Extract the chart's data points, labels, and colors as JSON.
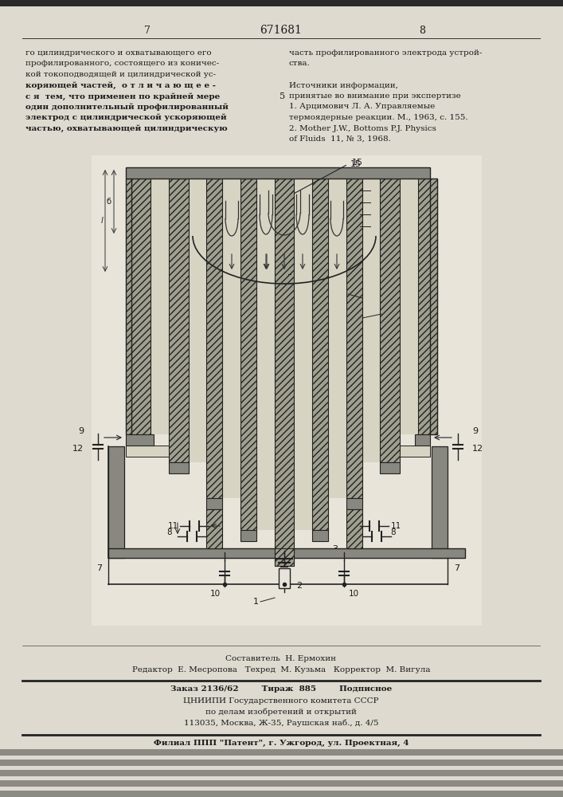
{
  "bg_color": "#c8c4b4",
  "page_color": "#dedad0",
  "title_number": "671681",
  "page_left": "7",
  "page_right": "8",
  "text_left_col": [
    "го цилиндрического и охватывающего его",
    "профилированного, состоящего из коничес-",
    "кой токоподводящей и цилиндрической ус-",
    "коряющей частей,  о т л и ч а ю щ е е -",
    "с я  тем, что применен по крайней мере",
    "один дополнительный профилированный",
    "электрод с цилиндрической ускоряющей",
    "частью, охватывающей цилиндрическую"
  ],
  "text_right_col": [
    "часть профилированного электрода устрой-",
    "ства.",
    "",
    "Источники информации,",
    "принятые во внимание при экспертизе",
    "1. Арцимович Л. А. Управляемые",
    "термоядерные реакции. М., 1963, с. 155.",
    "2. Mother J.W., Bottoms P.J. Physics",
    "of Fluids  11, № 3, 1968."
  ],
  "footer_line1": "Составитель  Н. Ермохин",
  "footer_line2": "Редактор  Е. Месропова   Техред  М. Кузьма   Корректор  М. Вигула",
  "footer_line3": "Заказ 2136/62        Тираж  885        Подписное",
  "footer_line4": "ЦНИИПИ Государственного комитета СССР",
  "footer_line5": "по делам изобретений и открытий",
  "footer_line6": "113035, Москва, Ж-35, Раушская наб., д. 4/5",
  "footer_line7": "Филиал ППП \"Патент\", г. Ужгород, ул. Проектная, 4"
}
